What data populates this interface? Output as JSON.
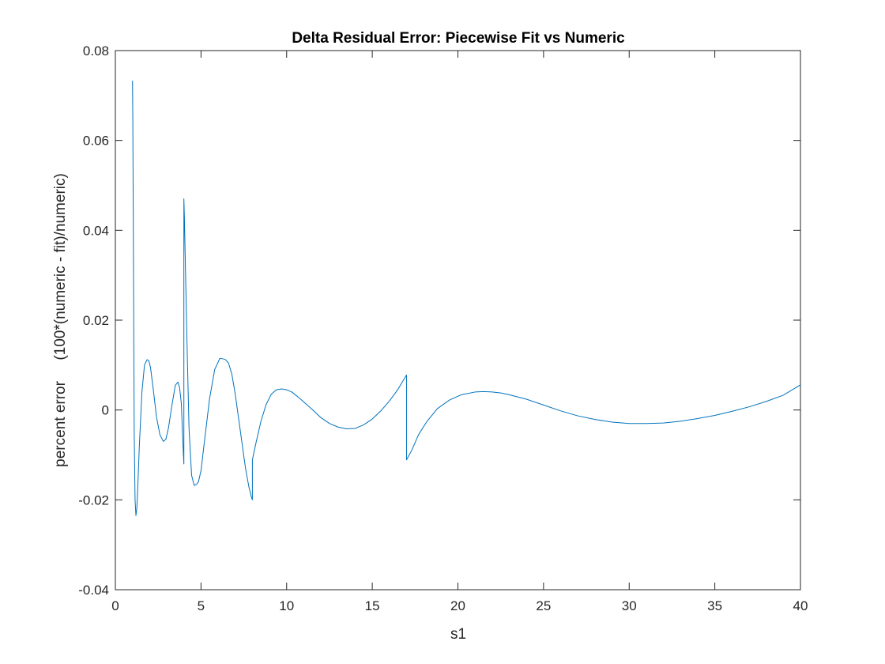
{
  "chart_data": {
    "type": "line",
    "title": "Delta Residual Error: Piecewise Fit vs Numeric",
    "xlabel": "s1",
    "ylabel": "percent error     (100*(numeric - fit)/numeric)",
    "xlim": [
      0,
      40
    ],
    "ylim": [
      -0.04,
      0.08
    ],
    "xticks": [
      0,
      5,
      10,
      15,
      20,
      25,
      30,
      35,
      40
    ],
    "xtick_labels": [
      "0",
      "5",
      "10",
      "15",
      "20",
      "25",
      "30",
      "35",
      "40"
    ],
    "yticks": [
      -0.04,
      -0.02,
      0,
      0.02,
      0.04,
      0.06,
      0.08
    ],
    "ytick_labels": [
      "-0.04",
      "-0.02",
      "0",
      "0.02",
      "0.04",
      "0.06",
      "0.08"
    ],
    "grid": false,
    "box": true,
    "legend": "none",
    "line_color": "#0072BD",
    "axis_color": "#262626",
    "series": [
      {
        "x": [
          1.0,
          1.02,
          1.06,
          1.1,
          1.15,
          1.2,
          1.25,
          1.3,
          1.4,
          1.55,
          1.7,
          1.85,
          1.95,
          2.05,
          2.2,
          2.4,
          2.6,
          2.8,
          2.95,
          3.1,
          3.3,
          3.5,
          3.65,
          3.75,
          3.85,
          3.95,
          4.0,
          4.0,
          4.03,
          4.1,
          4.2,
          4.3,
          4.45,
          4.6,
          4.75,
          4.85,
          5.0,
          5.2,
          5.5,
          5.8,
          6.1,
          6.4,
          6.6,
          6.8,
          7.0,
          7.2,
          7.4,
          7.6,
          7.8,
          7.95,
          8.0,
          8.0,
          8.2,
          8.5,
          8.8,
          9.1,
          9.4,
          9.7,
          10.0,
          10.3,
          10.6,
          11.0,
          11.5,
          12.0,
          12.5,
          13.0,
          13.5,
          14.0,
          14.5,
          15.0,
          15.5,
          16.0,
          16.5,
          17.0,
          17.0,
          17.3,
          17.7,
          18.2,
          18.8,
          19.5,
          20.2,
          21.0,
          21.5,
          22.0,
          22.5,
          23.0,
          24.0,
          25.0,
          26.0,
          27.0,
          28.0,
          29.0,
          30.0,
          31.0,
          32.0,
          33.0,
          34.0,
          35.0,
          36.0,
          37.0,
          38.0,
          39.0,
          40.0
        ],
        "y": [
          0.0733,
          0.064,
          0.03,
          -0.005,
          -0.02,
          -0.0235,
          -0.022,
          -0.018,
          -0.008,
          0.004,
          0.01,
          0.0112,
          0.011,
          0.0095,
          0.005,
          -0.0015,
          -0.0055,
          -0.007,
          -0.0065,
          -0.004,
          0.001,
          0.0055,
          0.0062,
          0.005,
          0.0015,
          -0.008,
          -0.012,
          0.047,
          0.043,
          0.03,
          0.012,
          -0.004,
          -0.0145,
          -0.0168,
          -0.0165,
          -0.016,
          -0.0135,
          -0.007,
          0.0025,
          0.009,
          0.0115,
          0.0113,
          0.0105,
          0.008,
          0.0035,
          -0.002,
          -0.0075,
          -0.013,
          -0.0172,
          -0.0195,
          -0.02,
          -0.0111,
          -0.0075,
          -0.0025,
          0.0012,
          0.0035,
          0.0045,
          0.0047,
          0.0045,
          0.004,
          0.0031,
          0.0018,
          0.0001,
          -0.0017,
          -0.003,
          -0.0038,
          -0.0042,
          -0.0041,
          -0.0033,
          -0.002,
          -0.0002,
          0.002,
          0.0046,
          0.0078,
          -0.0111,
          -0.009,
          -0.0055,
          -0.0025,
          0.0003,
          0.0022,
          0.0034,
          0.004,
          0.0041,
          0.004,
          0.0038,
          0.0034,
          0.0024,
          0.0011,
          -0.0002,
          -0.0013,
          -0.0021,
          -0.0027,
          -0.003,
          -0.003,
          -0.0029,
          -0.0025,
          -0.0019,
          -0.0012,
          -0.0003,
          0.0007,
          0.0019,
          0.0033,
          0.0056
        ]
      }
    ]
  }
}
